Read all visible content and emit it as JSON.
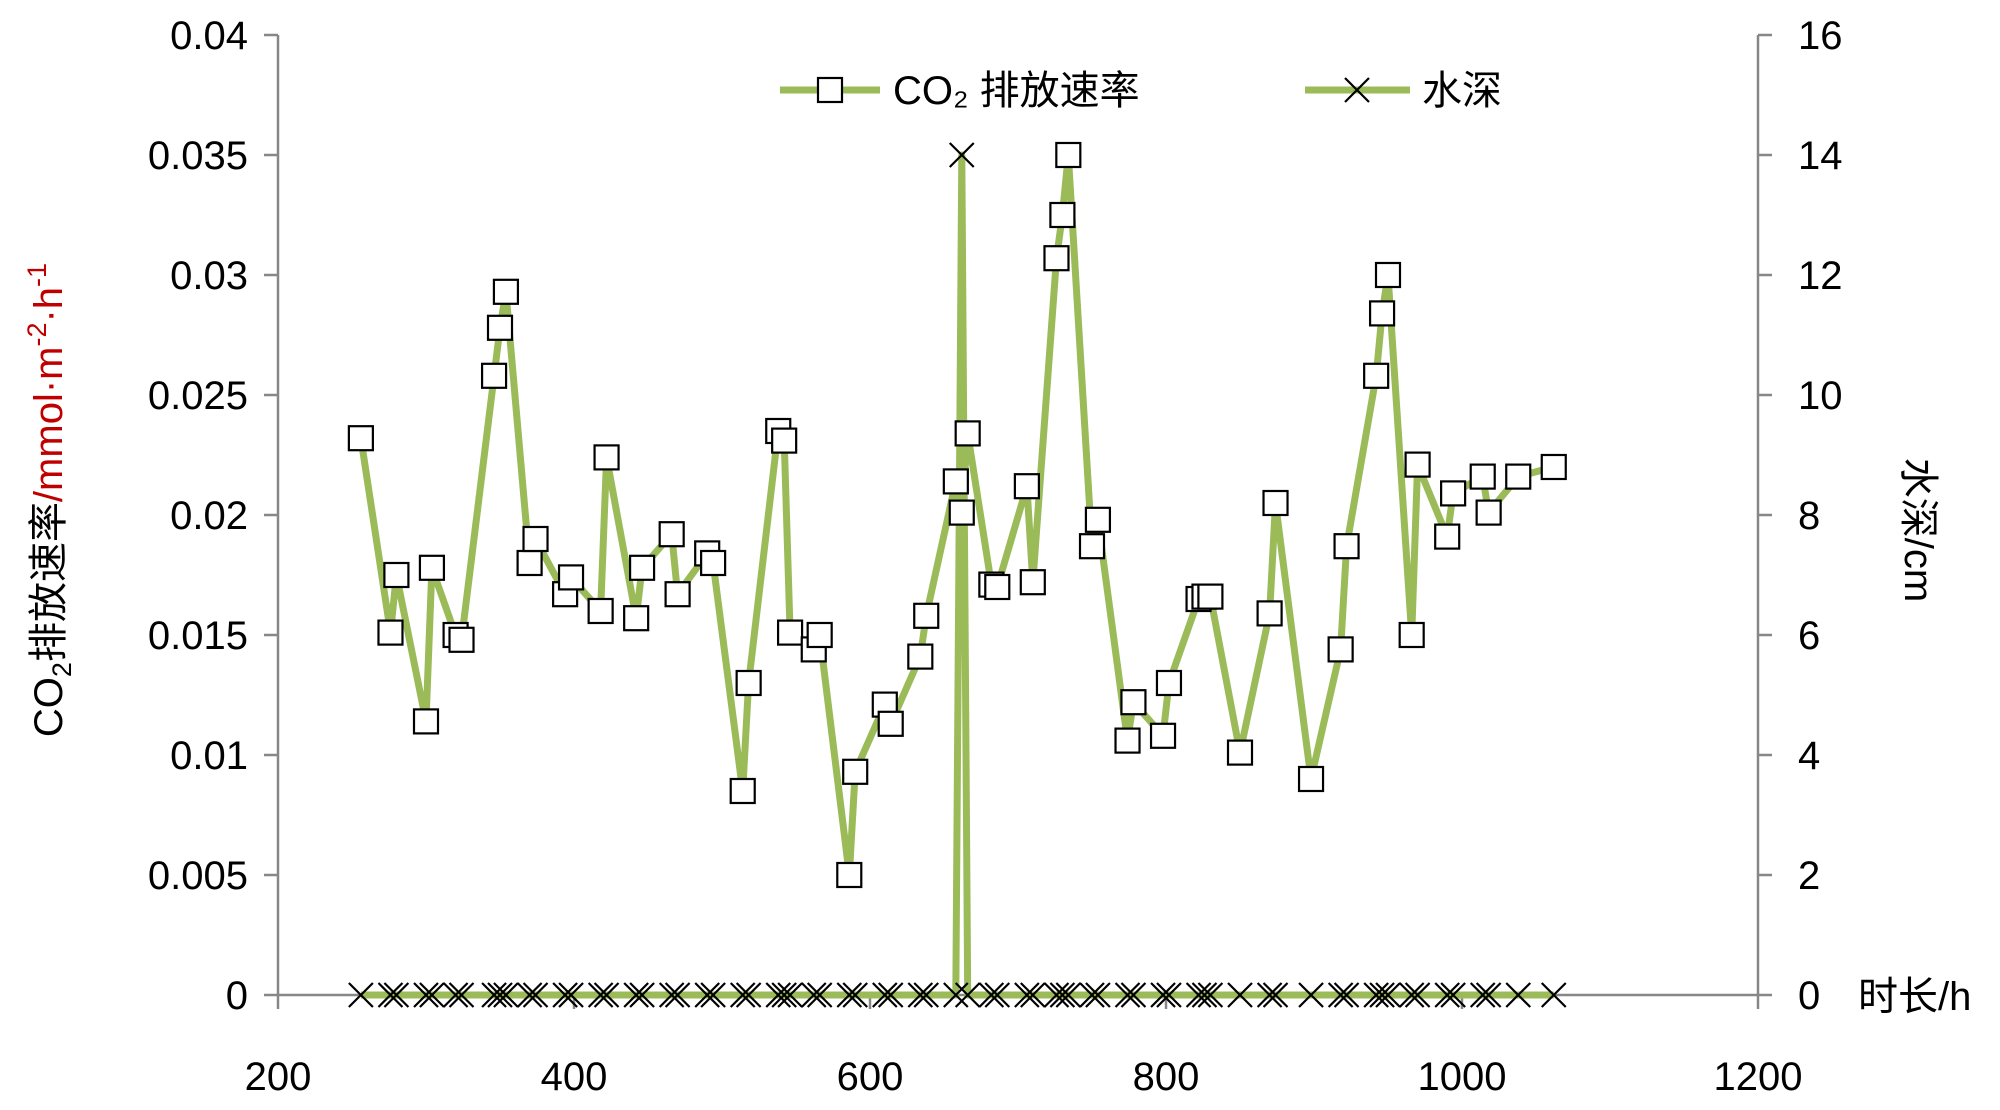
{
  "chart_data": {
    "type": "line",
    "title": "",
    "xlabel": "时长/h",
    "ylabel": {
      "prefix": "CO",
      "sub": "2",
      "main": "排放速率",
      "unit": "/mmol·m",
      "sup1": "-2",
      "mid": "·h",
      "sup2": "-1"
    },
    "y2label": "水深/cm",
    "xlim": [
      200,
      1200
    ],
    "ylim": [
      0,
      0.04
    ],
    "y2lim": [
      0,
      16
    ],
    "x_ticks": [
      "200",
      "400",
      "600",
      "800",
      "1000",
      "1200"
    ],
    "y_ticks": [
      "0",
      "0.005",
      "0.01",
      "0.015",
      "0.02",
      "0.025",
      "0.03",
      "0.035",
      "0.04"
    ],
    "y2_ticks": [
      "0",
      "2",
      "4",
      "6",
      "8",
      "10",
      "12",
      "14",
      "16"
    ],
    "grid": false,
    "legend_position": "top-center",
    "line_color": "#9bbb59",
    "series": [
      {
        "name": "CO₂ 排放速率",
        "marker": "square",
        "axis": "left",
        "x": [
          256,
          276,
          280,
          300,
          304,
          320,
          324,
          346,
          350,
          354,
          370,
          374,
          394,
          398,
          418,
          422,
          442,
          446,
          466,
          470,
          490,
          494,
          514,
          518,
          538,
          542,
          546,
          562,
          566,
          586,
          590,
          610,
          614,
          634,
          638,
          658,
          662,
          666,
          682,
          686,
          706,
          710,
          726,
          730,
          734,
          750,
          754,
          774,
          778,
          798,
          802,
          822,
          826,
          830,
          850,
          870,
          874,
          898,
          918,
          922,
          942,
          946,
          950,
          966,
          970,
          990,
          994,
          1014,
          1018,
          1038,
          1062
        ],
        "values": [
          0.0232,
          0.0151,
          0.0175,
          0.0114,
          0.0178,
          0.015,
          0.0148,
          0.0258,
          0.0278,
          0.0293,
          0.018,
          0.019,
          0.0167,
          0.0174,
          0.016,
          0.0224,
          0.0157,
          0.0178,
          0.0192,
          0.0167,
          0.0184,
          0.018,
          0.0085,
          0.013,
          0.0235,
          0.0231,
          0.0151,
          0.0144,
          0.015,
          0.005,
          0.0093,
          0.0121,
          0.0113,
          0.0141,
          0.0158,
          0.0214,
          0.0201,
          0.0234,
          0.0171,
          0.017,
          0.0212,
          0.0172,
          0.0307,
          0.0325,
          0.035,
          0.0187,
          0.0198,
          0.0106,
          0.0122,
          0.0108,
          0.013,
          0.0165,
          0.0166,
          0.0166,
          0.0101,
          0.0159,
          0.0205,
          0.009,
          0.0144,
          0.0187,
          0.0258,
          0.0284,
          0.03,
          0.015,
          0.0221,
          0.0191,
          0.0209,
          0.0216,
          0.0201,
          0.0216,
          0.022
        ]
      },
      {
        "name": "水深",
        "marker": "x",
        "axis": "right",
        "x": [
          256,
          276,
          280,
          300,
          304,
          320,
          324,
          346,
          350,
          354,
          370,
          374,
          394,
          398,
          418,
          422,
          442,
          446,
          466,
          470,
          490,
          494,
          514,
          518,
          538,
          542,
          546,
          562,
          566,
          586,
          590,
          610,
          614,
          634,
          638,
          658,
          662,
          666,
          682,
          686,
          706,
          710,
          726,
          730,
          734,
          750,
          754,
          774,
          778,
          798,
          802,
          822,
          826,
          830,
          850,
          870,
          874,
          898,
          918,
          922,
          942,
          946,
          950,
          966,
          970,
          990,
          994,
          1014,
          1018,
          1038,
          1062
        ],
        "values": [
          0,
          0,
          0,
          0,
          0,
          0,
          0,
          0,
          0,
          0,
          0,
          0,
          0,
          0,
          0,
          0,
          0,
          0,
          0,
          0,
          0,
          0,
          0,
          0,
          0,
          0,
          0,
          0,
          0,
          0,
          0,
          0,
          0,
          0,
          0,
          0,
          14,
          0,
          0,
          0,
          0,
          0,
          0,
          0,
          0,
          0,
          0,
          0,
          0,
          0,
          0,
          0,
          0,
          0,
          0,
          0,
          0,
          0,
          0,
          0,
          0,
          0,
          0,
          0,
          0,
          0,
          0,
          0,
          0,
          0,
          0
        ]
      }
    ]
  }
}
